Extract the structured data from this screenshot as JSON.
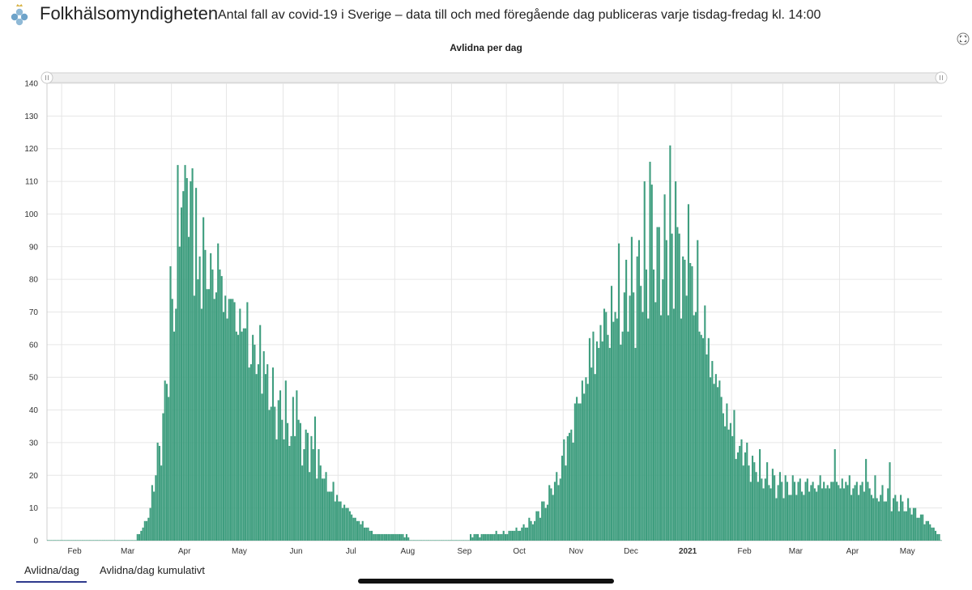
{
  "header": {
    "brand": "Folkhälsomyndigheten",
    "subtitle": "Antal fall av covid-19 i Sverige – data till och med föregående dag publiceras varje tisdag-fredag kl. 14:00",
    "logo_icon": "crown-clover-logo-icon",
    "expand_icon": "fullscreen-expand-icon"
  },
  "tabs": [
    {
      "label": "Avlidna/dag",
      "active": true
    },
    {
      "label": "Avlidna/dag kumulativt",
      "active": false
    }
  ],
  "colors": {
    "bar": "#3f9e7f",
    "bar_edge": "#2f8a6b",
    "grid": "#e6e6e6",
    "active_tab": "#2e3a8c"
  },
  "chart_data": {
    "type": "bar",
    "title": "Avlidna per dag",
    "ylim": [
      0,
      140
    ],
    "yticks": [
      0,
      10,
      20,
      30,
      40,
      50,
      60,
      70,
      80,
      90,
      100,
      110,
      120,
      130,
      140
    ],
    "grid": true,
    "start_date": "2020-01-24",
    "end_date": "2021-05-26",
    "x_tick_labels": [
      {
        "label": "Feb",
        "date": "2020-02-01"
      },
      {
        "label": "Mar",
        "date": "2020-03-01"
      },
      {
        "label": "Apr",
        "date": "2020-04-01"
      },
      {
        "label": "May",
        "date": "2020-05-01"
      },
      {
        "label": "Jun",
        "date": "2020-06-01"
      },
      {
        "label": "Jul",
        "date": "2020-07-01"
      },
      {
        "label": "Aug",
        "date": "2020-08-01"
      },
      {
        "label": "Sep",
        "date": "2020-09-01"
      },
      {
        "label": "Oct",
        "date": "2020-10-01"
      },
      {
        "label": "Nov",
        "date": "2020-11-01"
      },
      {
        "label": "Dec",
        "date": "2020-12-01"
      },
      {
        "label": "2021",
        "date": "2021-01-01",
        "bold": true
      },
      {
        "label": "Feb",
        "date": "2021-02-01"
      },
      {
        "label": "Mar",
        "date": "2021-03-01"
      },
      {
        "label": "Apr",
        "date": "2021-04-01"
      },
      {
        "label": "May",
        "date": "2021-05-01"
      }
    ],
    "anchors": [
      [
        "2020-01-24",
        0
      ],
      [
        "2020-03-10",
        0
      ],
      [
        "2020-03-11",
        1
      ],
      [
        "2020-03-14",
        2
      ],
      [
        "2020-03-17",
        5
      ],
      [
        "2020-03-20",
        10
      ],
      [
        "2020-03-23",
        22
      ],
      [
        "2020-03-26",
        32
      ],
      [
        "2020-03-29",
        48
      ],
      [
        "2020-04-01",
        75
      ],
      [
        "2020-04-04",
        88
      ],
      [
        "2020-04-07",
        100
      ],
      [
        "2020-04-10",
        102
      ],
      [
        "2020-04-13",
        98
      ],
      [
        "2020-04-16",
        94
      ],
      [
        "2020-04-19",
        84
      ],
      [
        "2020-04-22",
        82
      ],
      [
        "2020-04-28",
        78
      ],
      [
        "2020-05-05",
        72
      ],
      [
        "2020-05-12",
        64
      ],
      [
        "2020-05-19",
        54
      ],
      [
        "2020-05-26",
        43
      ],
      [
        "2020-06-02",
        38
      ],
      [
        "2020-06-09",
        33
      ],
      [
        "2020-06-16",
        28
      ],
      [
        "2020-06-23",
        20
      ],
      [
        "2020-06-30",
        13
      ],
      [
        "2020-07-07",
        9
      ],
      [
        "2020-07-14",
        5
      ],
      [
        "2020-07-21",
        2
      ],
      [
        "2020-08-01",
        2
      ],
      [
        "2020-08-15",
        1
      ],
      [
        "2020-09-01",
        1
      ],
      [
        "2020-09-20",
        2
      ],
      [
        "2020-10-05",
        3
      ],
      [
        "2020-10-15",
        6
      ],
      [
        "2020-10-22",
        12
      ],
      [
        "2020-10-29",
        20
      ],
      [
        "2020-11-05",
        35
      ],
      [
        "2020-11-12",
        50
      ],
      [
        "2020-11-19",
        62
      ],
      [
        "2020-11-26",
        70
      ],
      [
        "2020-12-03",
        74
      ],
      [
        "2020-12-10",
        80
      ],
      [
        "2020-12-17",
        88
      ],
      [
        "2020-12-24",
        90
      ],
      [
        "2020-12-31",
        86
      ],
      [
        "2021-01-07",
        82
      ],
      [
        "2021-01-14",
        70
      ],
      [
        "2021-01-21",
        55
      ],
      [
        "2021-01-28",
        40
      ],
      [
        "2021-02-04",
        30
      ],
      [
        "2021-02-11",
        24
      ],
      [
        "2021-02-18",
        20
      ],
      [
        "2021-03-01",
        17
      ],
      [
        "2021-03-15",
        17
      ],
      [
        "2021-04-01",
        18
      ],
      [
        "2021-04-15",
        16
      ],
      [
        "2021-04-29",
        13
      ],
      [
        "2021-05-10",
        10
      ],
      [
        "2021-05-20",
        5
      ],
      [
        "2021-05-26",
        1
      ]
    ],
    "peaks": [
      [
        "2020-04-04",
        115
      ],
      [
        "2020-04-08",
        115
      ],
      [
        "2020-04-09",
        111
      ],
      [
        "2020-04-05",
        90
      ],
      [
        "2020-04-06",
        102
      ],
      [
        "2020-04-15",
        80
      ],
      [
        "2020-04-23",
        83
      ],
      [
        "2020-04-27",
        83
      ],
      [
        "2020-05-21",
        58
      ],
      [
        "2020-06-08",
        46
      ],
      [
        "2020-06-18",
        38
      ],
      [
        "2020-12-18",
        116
      ],
      [
        "2020-12-29",
        121
      ],
      [
        "2021-01-01",
        110
      ],
      [
        "2020-12-22",
        96
      ],
      [
        "2021-01-08",
        103
      ],
      [
        "2021-01-13",
        92
      ],
      [
        "2021-03-29",
        28
      ],
      [
        "2021-04-15",
        25
      ],
      [
        "2021-04-28",
        24
      ]
    ],
    "series": [
      {
        "name": "Avlidna/dag",
        "values": []
      }
    ]
  }
}
